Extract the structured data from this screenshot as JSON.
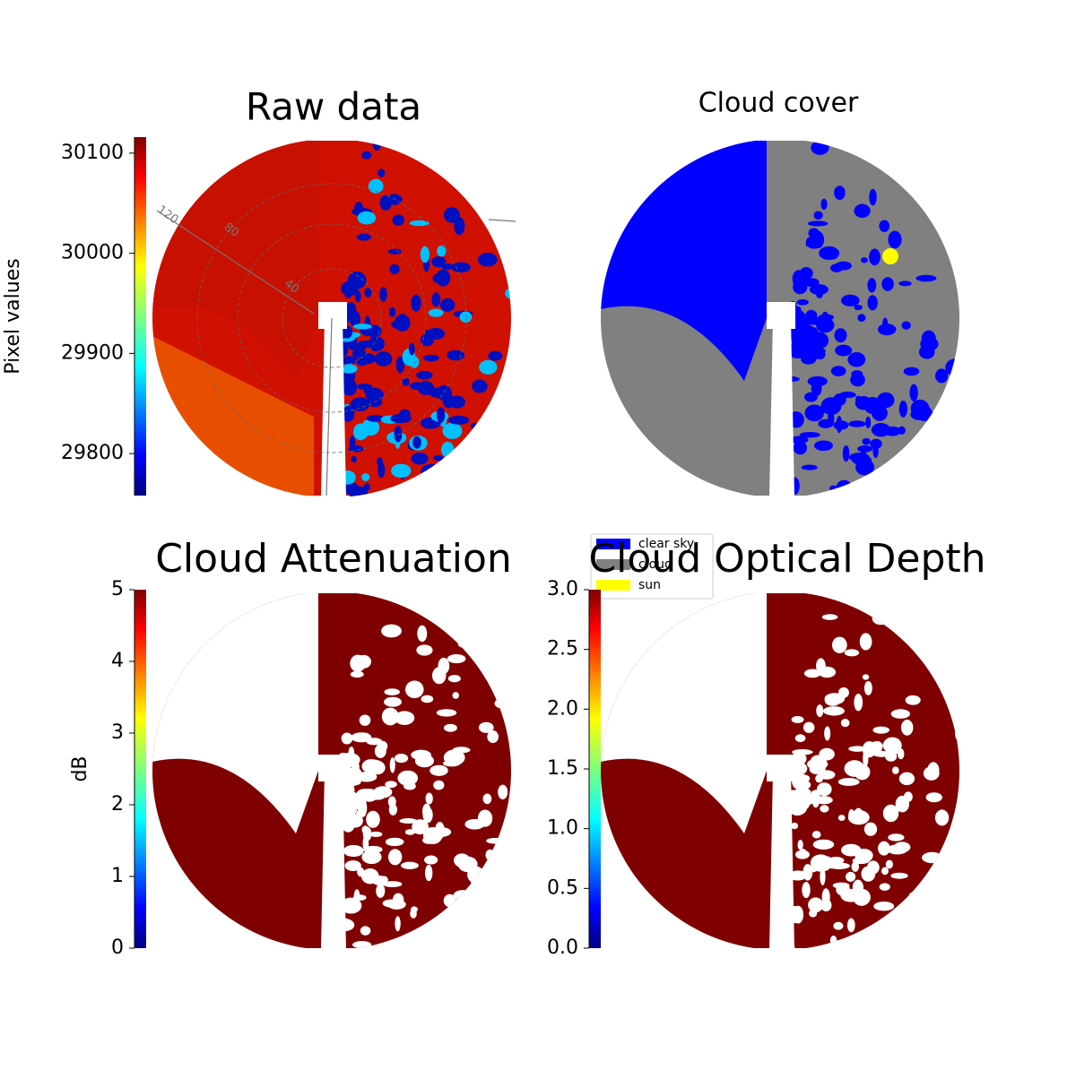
{
  "chart_data": [
    {
      "type": "image",
      "title": "Raw data",
      "colorbar": {
        "label": "Pixel values",
        "cmap": "jet",
        "ylim": [
          29758,
          30116
        ],
        "yticks": [
          29800,
          29900,
          30000,
          30100
        ]
      },
      "polar_labels": [
        "120",
        "80",
        "40"
      ]
    },
    {
      "type": "image",
      "title": "Cloud cover",
      "legend": [
        {
          "name": "clear sky",
          "color": "#0000ff"
        },
        {
          "name": "cloud",
          "color": "#808080"
        },
        {
          "name": "sun",
          "color": "#ffff00"
        }
      ]
    },
    {
      "type": "image",
      "title": "Cloud Attenuation",
      "colorbar": {
        "label": "dB",
        "cmap": "jet",
        "ylim": [
          0,
          5
        ],
        "yticks": [
          0,
          1,
          2,
          3,
          4,
          5
        ]
      }
    },
    {
      "type": "image",
      "title": "Cloud Optical Depth",
      "colorbar": {
        "cmap": "jet",
        "ylim": [
          0,
          3
        ],
        "yticks": [
          {
            "value": 0,
            "label": "0.0"
          },
          0.5,
          {
            "value": 1,
            "label": "1.0"
          },
          1.5,
          {
            "value": 2,
            "label": "2.0"
          },
          2.5,
          {
            "value": 3,
            "label": "3.0"
          }
        ]
      }
    }
  ]
}
